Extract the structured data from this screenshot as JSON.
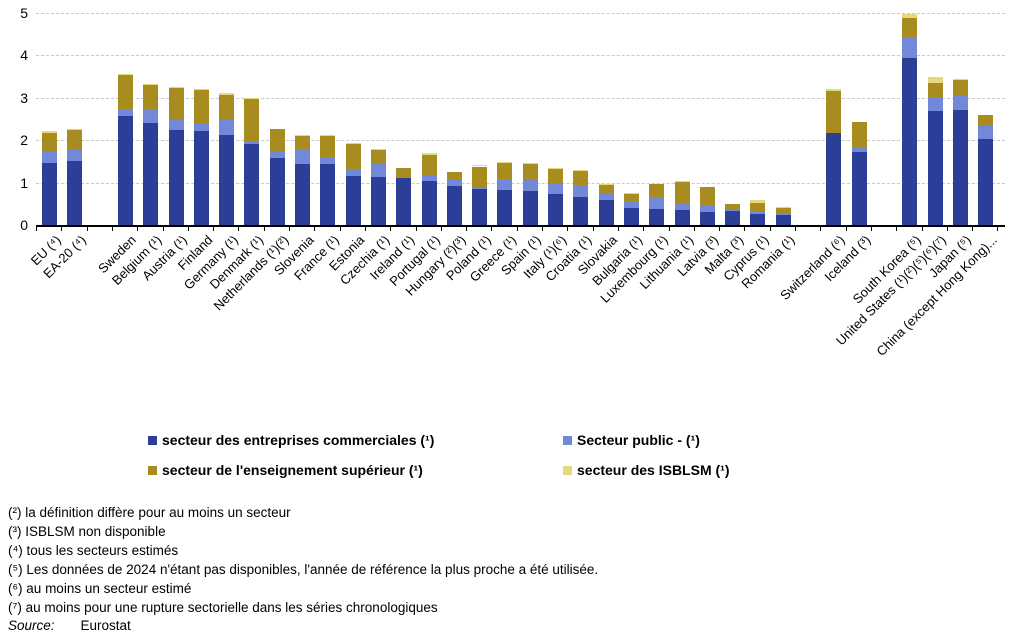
{
  "chart_data": {
    "type": "bar",
    "stacked": true,
    "grid": "horizontal-dashed",
    "legend_position": "bottom",
    "ylim": [
      0,
      5
    ],
    "yticks": [
      "0",
      "1",
      "2",
      "3",
      "4",
      "5"
    ],
    "series_names": [
      "secteur des entreprises commerciales (¹)",
      "Secteur public -  (¹)",
      "secteur de l'enseignement supérieur (¹)",
      "secteur des ISBLSM (¹)"
    ],
    "colors": {
      "business": "#2B3F99",
      "public": "#7289D9",
      "higher_ed": "#A98C20",
      "isblsm": "#E7D77D",
      "gridline": "#c9c9c9",
      "axis": "#000000"
    },
    "categories": [
      {
        "label": "EU (⁴)",
        "gap_before": false,
        "values": [
          1.46,
          0.26,
          0.46,
          0.04
        ]
      },
      {
        "label": "EA-20 (⁴)",
        "gap_before": false,
        "values": [
          1.51,
          0.25,
          0.47,
          0.03
        ]
      },
      {
        "label": "Sweden",
        "gap_before": true,
        "values": [
          2.56,
          0.17,
          0.8,
          0.02
        ]
      },
      {
        "label": "Belgium (¹)",
        "gap_before": false,
        "values": [
          2.4,
          0.33,
          0.57,
          0.02
        ]
      },
      {
        "label": "Austria (¹)",
        "gap_before": false,
        "values": [
          2.23,
          0.25,
          0.75,
          0.01
        ]
      },
      {
        "label": "Finland",
        "gap_before": false,
        "values": [
          2.21,
          0.17,
          0.8,
          0.02
        ]
      },
      {
        "label": "Germany (¹)",
        "gap_before": false,
        "values": [
          2.12,
          0.38,
          0.57,
          0.04
        ]
      },
      {
        "label": "Denmark (¹)",
        "gap_before": false,
        "values": [
          1.9,
          0.06,
          1.02,
          0.02
        ]
      },
      {
        "label": "Netherlands (¹)(²)",
        "gap_before": false,
        "values": [
          1.57,
          0.15,
          0.55,
          0.0
        ]
      },
      {
        "label": "Slovenia",
        "gap_before": false,
        "values": [
          1.44,
          0.35,
          0.3,
          0.01
        ]
      },
      {
        "label": "France (¹)",
        "gap_before": false,
        "values": [
          1.44,
          0.15,
          0.52,
          0.02
        ]
      },
      {
        "label": "Estonia",
        "gap_before": false,
        "values": [
          1.15,
          0.16,
          0.6,
          0.01
        ]
      },
      {
        "label": "Czechia (¹)",
        "gap_before": false,
        "values": [
          1.13,
          0.3,
          0.35,
          0.01
        ]
      },
      {
        "label": "Ireland (¹)",
        "gap_before": false,
        "values": [
          1.12,
          0.02,
          0.2,
          0.0
        ]
      },
      {
        "label": "Portugal (¹)",
        "gap_before": false,
        "values": [
          1.03,
          0.13,
          0.48,
          0.07
        ]
      },
      {
        "label": "Hungary (²)(³)",
        "gap_before": false,
        "values": [
          0.93,
          0.15,
          0.18,
          0.0
        ]
      },
      {
        "label": "Poland (¹)",
        "gap_before": false,
        "values": [
          0.86,
          0.01,
          0.51,
          0.01
        ]
      },
      {
        "label": "Greece (¹)",
        "gap_before": false,
        "values": [
          0.83,
          0.26,
          0.38,
          0.01
        ]
      },
      {
        "label": "Spain (¹)",
        "gap_before": false,
        "values": [
          0.8,
          0.27,
          0.37,
          0.01
        ]
      },
      {
        "label": "Italy (¹)(⁶)",
        "gap_before": false,
        "values": [
          0.74,
          0.23,
          0.34,
          0.01
        ]
      },
      {
        "label": "Croatia (¹)",
        "gap_before": false,
        "values": [
          0.67,
          0.27,
          0.33,
          0.01
        ]
      },
      {
        "label": "Slovakia",
        "gap_before": false,
        "values": [
          0.6,
          0.13,
          0.22,
          0.01
        ]
      },
      {
        "label": "Bulgaria (¹)",
        "gap_before": false,
        "values": [
          0.41,
          0.16,
          0.15,
          0.01
        ]
      },
      {
        "label": "Luxembourg (¹)",
        "gap_before": false,
        "values": [
          0.37,
          0.29,
          0.3,
          0.0
        ]
      },
      {
        "label": "Lithuania (¹)",
        "gap_before": false,
        "values": [
          0.35,
          0.17,
          0.49,
          0.01
        ]
      },
      {
        "label": "Latvia (³)",
        "gap_before": false,
        "values": [
          0.31,
          0.16,
          0.43,
          0.0
        ]
      },
      {
        "label": "Malta (³)",
        "gap_before": false,
        "values": [
          0.33,
          0.03,
          0.13,
          0.0
        ]
      },
      {
        "label": "Cyprus (¹)",
        "gap_before": false,
        "values": [
          0.25,
          0.05,
          0.23,
          0.07
        ]
      },
      {
        "label": "Romania (¹)",
        "gap_before": false,
        "values": [
          0.24,
          0.03,
          0.12,
          0.01
        ]
      },
      {
        "label": "Switzerland (⁶)",
        "gap_before": true,
        "values": [
          2.18,
          0.0,
          0.97,
          0.05
        ]
      },
      {
        "label": "Iceland (³)",
        "gap_before": false,
        "values": [
          1.72,
          0.09,
          0.61,
          0.0
        ]
      },
      {
        "label": "South Korea (⁵)",
        "gap_before": true,
        "values": [
          3.95,
          0.48,
          0.45,
          0.1
        ]
      },
      {
        "label": "United States (¹)(²)(⁵)(⁶)(⁷)",
        "gap_before": false,
        "values": [
          2.7,
          0.33,
          0.33,
          0.12
        ]
      },
      {
        "label": "Japan (⁵)",
        "gap_before": false,
        "values": [
          2.71,
          0.33,
          0.38,
          0.02
        ]
      },
      {
        "label": "China (except Hong Kong)...",
        "gap_before": false,
        "values": [
          2.02,
          0.32,
          0.25,
          0.0
        ]
      }
    ]
  },
  "legend": {
    "items": [
      {
        "label": "secteur des entreprises commerciales (¹)",
        "color": "#2B3F99",
        "col": 0,
        "row": 0
      },
      {
        "label": "Secteur public -  (¹)",
        "color": "#7289D9",
        "col": 1,
        "row": 0
      },
      {
        "label": "secteur de l'enseignement supérieur (¹)",
        "color": "#A98C20",
        "col": 0,
        "row": 1
      },
      {
        "label": "secteur des ISBLSM (¹)",
        "color": "#E7D77D",
        "col": 1,
        "row": 1
      }
    ]
  },
  "footnotes": [
    "(²) la définition diffère pour au moins un secteur",
    "(³) ISBLSM non disponible",
    "(⁴) tous les secteurs estimés",
    "(⁵) Les données de 2024 n'étant pas disponibles, l'année de référence la plus proche a été utilisée.",
    "(⁶) au moins un secteur estimé",
    "(⁷) au moins pour une rupture sectorielle dans les séries chronologiques"
  ],
  "source": {
    "label": "Source:",
    "value": "Eurostat"
  }
}
